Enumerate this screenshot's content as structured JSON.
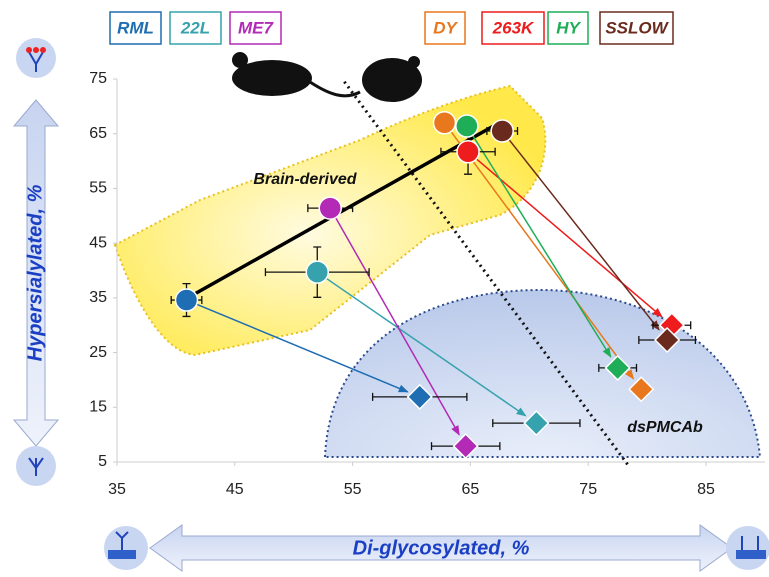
{
  "chart_data": {
    "type": "scatter",
    "x_label": "Di-glycosylated, %",
    "y_label": "Hypersialylated, %",
    "xlim": [
      35,
      90
    ],
    "xticks": [
      35,
      45,
      55,
      65,
      75,
      85
    ],
    "ylim": [
      5,
      75
    ],
    "yticks": [
      5,
      15,
      25,
      35,
      45,
      55,
      65,
      75
    ],
    "markers": [
      "circle",
      "diamond"
    ],
    "region_labels": [
      "Brain-derived",
      "dsPMCAb"
    ],
    "fit_line": {
      "x": [
        41,
        67.7
      ],
      "values": [
        35,
        67.3
      ]
    },
    "divider": {
      "x": [
        54.3,
        78.5
      ],
      "values": [
        74.5,
        4.1
      ]
    },
    "series": [
      {
        "name": "RML",
        "color": "#1f6db3",
        "x": [
          40.9,
          60.7
        ],
        "values": [
          34.6,
          16.9
        ],
        "xerr": [
          1.3,
          4
        ],
        "yerr": [
          3,
          null
        ]
      },
      {
        "name": "22L",
        "color": "#36a2ad",
        "x": [
          52,
          70.6
        ],
        "values": [
          39.7,
          12.1
        ],
        "xerr": [
          4.4,
          3.7
        ],
        "yerr": [
          4.6,
          null
        ]
      },
      {
        "name": "ME7",
        "color": "#b22ab5",
        "x": [
          53.1,
          64.6
        ],
        "values": [
          51.4,
          7.9
        ],
        "xerr": [
          1.9,
          2.9
        ],
        "yerr": [
          null,
          null
        ]
      },
      {
        "name": "DY",
        "color": "#e8771e",
        "x": [
          62.8,
          79.5
        ],
        "values": [
          67,
          18.3
        ],
        "xerr": [
          null,
          null
        ],
        "yerr": [
          null,
          null
        ]
      },
      {
        "name": "263K",
        "color": "#ee1c1c",
        "x": [
          64.8,
          82.1
        ],
        "values": [
          61.7,
          30
        ],
        "xerr": [
          2.3,
          1.6
        ],
        "yerr": [
          4.1,
          null
        ]
      },
      {
        "name": "HY",
        "color": "#1fae57",
        "x": [
          64.7,
          77.5
        ],
        "values": [
          66.4,
          22.2
        ],
        "xerr": [
          null,
          1.6
        ],
        "yerr": [
          null,
          null
        ]
      },
      {
        "name": "SSLOW",
        "color": "#6b2a1e",
        "x": [
          67.7,
          81.7
        ],
        "values": [
          65.5,
          27.3
        ],
        "xerr": [
          1.3,
          2.4
        ],
        "yerr": [
          null,
          null
        ]
      }
    ]
  }
}
